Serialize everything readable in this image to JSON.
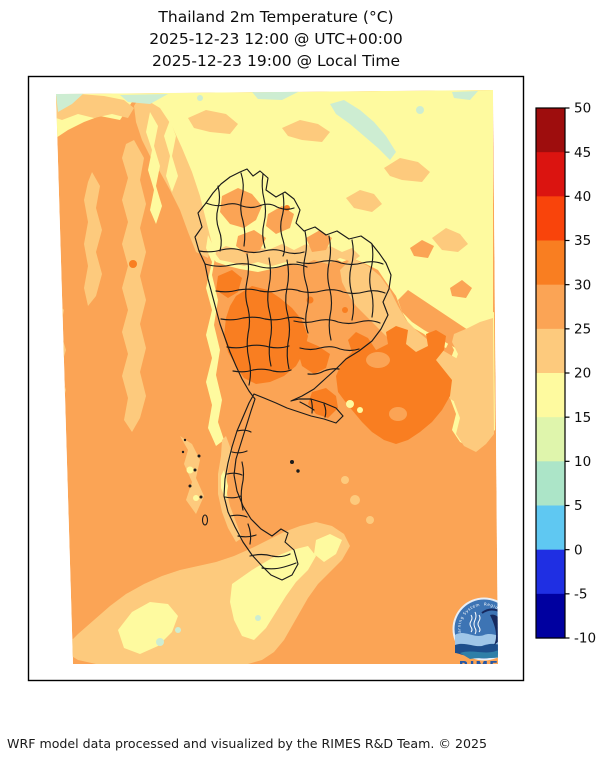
{
  "title": {
    "line1": "Thailand 2m Temperature (°C)",
    "line2": "2025-12-23 12:00 @ UTC+00:00",
    "line3": "2025-12-23 19:00 @ Local Time"
  },
  "footer": {
    "credit": "WRF model data processed and visualized by the RIMES R&D Team. © 2025"
  },
  "logo": {
    "name": "RIMES",
    "ring_text": "Regional Integrated Multi-Hazard Early Warning System"
  },
  "chart_data": {
    "type": "heatmap",
    "title": "Thailand 2m Temperature (°C)",
    "valid_time_utc": "2025-12-23 12:00 @ UTC+00:00",
    "valid_time_local": "2025-12-23 19:00 @ Local Time",
    "units": "°C",
    "legend_position": "right",
    "grid": false,
    "colorbar": {
      "orientation": "vertical",
      "min": -10,
      "max": 50,
      "step": 5,
      "ticks": [
        50,
        45,
        40,
        35,
        30,
        25,
        20,
        15,
        10,
        5,
        0,
        -5,
        -10
      ],
      "segments": [
        {
          "range": "45 to 50",
          "color": "#9E0D0D"
        },
        {
          "range": "40 to 45",
          "color": "#DB1410"
        },
        {
          "range": "35 to 40",
          "color": "#F9440B"
        },
        {
          "range": "30 to 35",
          "color": "#F97E21"
        },
        {
          "range": "25 to 30",
          "color": "#FBA455"
        },
        {
          "range": "20 to 25",
          "color": "#FDCA7D"
        },
        {
          "range": "15 to 20",
          "color": "#FEFA9F"
        },
        {
          "range": "10 to 15",
          "color": "#DFF5AC"
        },
        {
          "range": "5 to 10",
          "color": "#ACE5C8"
        },
        {
          "range": "0 to 5",
          "color": "#5FC8F2"
        },
        {
          "range": "-5 to 0",
          "color": "#1F2FE3"
        },
        {
          "range": "-10 to -5",
          "color": "#0000A0"
        }
      ]
    },
    "map_reading": {
      "region": "Thailand and surroundings, province boundaries drawn over Thailand",
      "dominant_range_c": "25 to 30",
      "warm_patches_30_35_c": [
        "Central plains around Bangkok",
        "Cambodia lowlands (south-east of map)",
        "Eastern seaboard spots"
      ],
      "mild_areas_20_25_c": [
        "Western (Myanmar) foothill bands",
        "Bottom band across northern Malaysia",
        "East of the Cambodian warm patch",
        "Peninsula west-coast strip"
      ],
      "cool_areas_15_20_c": [
        "Northern highlands across top of map",
        "Thai-Myanmar border ridge",
        "Southern mountain band near bottom"
      ],
      "coolest_patches_10_15_c": [
        "Far northern mountain tops along the top edge"
      ]
    }
  }
}
